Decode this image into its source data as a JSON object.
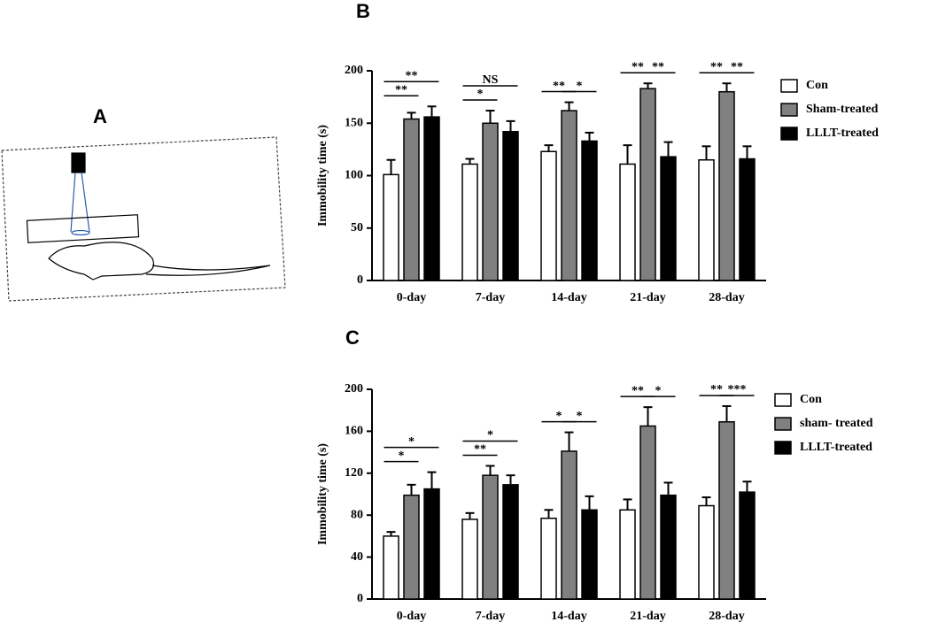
{
  "illustration": {
    "label": "A"
  },
  "chart_data": [
    {
      "type": "bar",
      "panel": "B",
      "y_label": "Immobility time (s)",
      "categories": [
        "0-day",
        "7-day",
        "14-day",
        "21-day",
        "28-day"
      ],
      "ylim": [
        0,
        200
      ],
      "yticks": [
        0,
        50,
        100,
        150,
        200
      ],
      "series": [
        {
          "name": "Con",
          "color": "#ffffff",
          "values": [
            101,
            111,
            123,
            111,
            115
          ],
          "errors": [
            14,
            5,
            6,
            18,
            13
          ]
        },
        {
          "name": "Sham-treated",
          "color": "#808080",
          "values": [
            154,
            150,
            162,
            183,
            180
          ],
          "errors": [
            6,
            12,
            8,
            5,
            8
          ]
        },
        {
          "name": "LLLT-treated",
          "color": "#000000",
          "values": [
            156,
            142,
            133,
            118,
            116
          ],
          "errors": [
            10,
            10,
            8,
            14,
            12
          ]
        }
      ],
      "annotations": [
        {
          "text": "**",
          "category": 0,
          "from": 0,
          "to": 1
        },
        {
          "text": "**",
          "category": 0,
          "from": 0,
          "to": 2
        },
        {
          "text": "*",
          "category": 1,
          "from": 0,
          "to": 1
        },
        {
          "text": "NS",
          "category": 1,
          "from": 0,
          "to": 2
        },
        {
          "text": "**",
          "category": 2,
          "from": 0,
          "to": 1
        },
        {
          "text": "*",
          "category": 2,
          "from": 1,
          "to": 2
        },
        {
          "text": "**",
          "category": 3,
          "from": 0,
          "to": 1
        },
        {
          "text": "**",
          "category": 3,
          "from": 1,
          "to": 2
        },
        {
          "text": "**",
          "category": 4,
          "from": 0,
          "to": 1
        },
        {
          "text": "**",
          "category": 4,
          "from": 1,
          "to": 2
        }
      ]
    },
    {
      "type": "bar",
      "panel": "C",
      "y_label": "Immobility time (s)",
      "categories": [
        "0-day",
        "7-day",
        "14-day",
        "21-day",
        "28-day"
      ],
      "ylim": [
        0,
        200
      ],
      "yticks": [
        0,
        40,
        80,
        120,
        160,
        200
      ],
      "series": [
        {
          "name": "Con",
          "color": "#ffffff",
          "values": [
            60,
            76,
            77,
            85,
            89
          ],
          "errors": [
            4,
            6,
            8,
            10,
            8
          ]
        },
        {
          "name": "sham- treated",
          "color": "#808080",
          "values": [
            99,
            118,
            141,
            165,
            169
          ],
          "errors": [
            10,
            9,
            18,
            18,
            15
          ]
        },
        {
          "name": "LLLT-treated",
          "color": "#000000",
          "values": [
            105,
            109,
            85,
            99,
            102
          ],
          "errors": [
            16,
            9,
            13,
            12,
            10
          ]
        }
      ],
      "annotations": [
        {
          "text": "*",
          "category": 0,
          "from": 0,
          "to": 1
        },
        {
          "text": "*",
          "category": 0,
          "from": 0,
          "to": 2
        },
        {
          "text": "**",
          "category": 1,
          "from": 0,
          "to": 1
        },
        {
          "text": "*",
          "category": 1,
          "from": 0,
          "to": 2
        },
        {
          "text": "*",
          "category": 2,
          "from": 0,
          "to": 1
        },
        {
          "text": "*",
          "category": 2,
          "from": 1,
          "to": 2
        },
        {
          "text": "**",
          "category": 3,
          "from": 0,
          "to": 1
        },
        {
          "text": "*",
          "category": 3,
          "from": 1,
          "to": 2
        },
        {
          "text": "**",
          "category": 4,
          "from": 0,
          "to": 1
        },
        {
          "text": "***",
          "category": 4,
          "from": 1,
          "to": 2
        }
      ]
    }
  ]
}
